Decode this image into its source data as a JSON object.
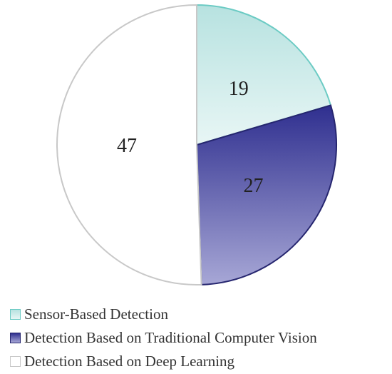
{
  "chart_data": {
    "type": "pie",
    "title": "",
    "slices": [
      {
        "label": "Sensor-Based Detection",
        "value": 19,
        "value_label": "19",
        "color": "#cfeceb",
        "gradient": [
          "#b7e2e0",
          "#e8f6f5"
        ],
        "stroke": "#6ccbc4"
      },
      {
        "label": "Detection Based on Traditional Computer Vision",
        "value": 27,
        "value_label": "27",
        "color": "#4b4ba5",
        "gradient": [
          "#2f2f8f",
          "#a7a7d6"
        ],
        "stroke": "#26266f"
      },
      {
        "label": "Detection Based on Deep Learning",
        "value": 47,
        "value_label": "47",
        "color": "#ffffff",
        "gradient": [
          "#ffffff",
          "#ffffff"
        ],
        "stroke": "#c8c8c8"
      }
    ],
    "start_angle_deg": 0,
    "direction": "clockwise",
    "legend_position": "bottom-left"
  }
}
